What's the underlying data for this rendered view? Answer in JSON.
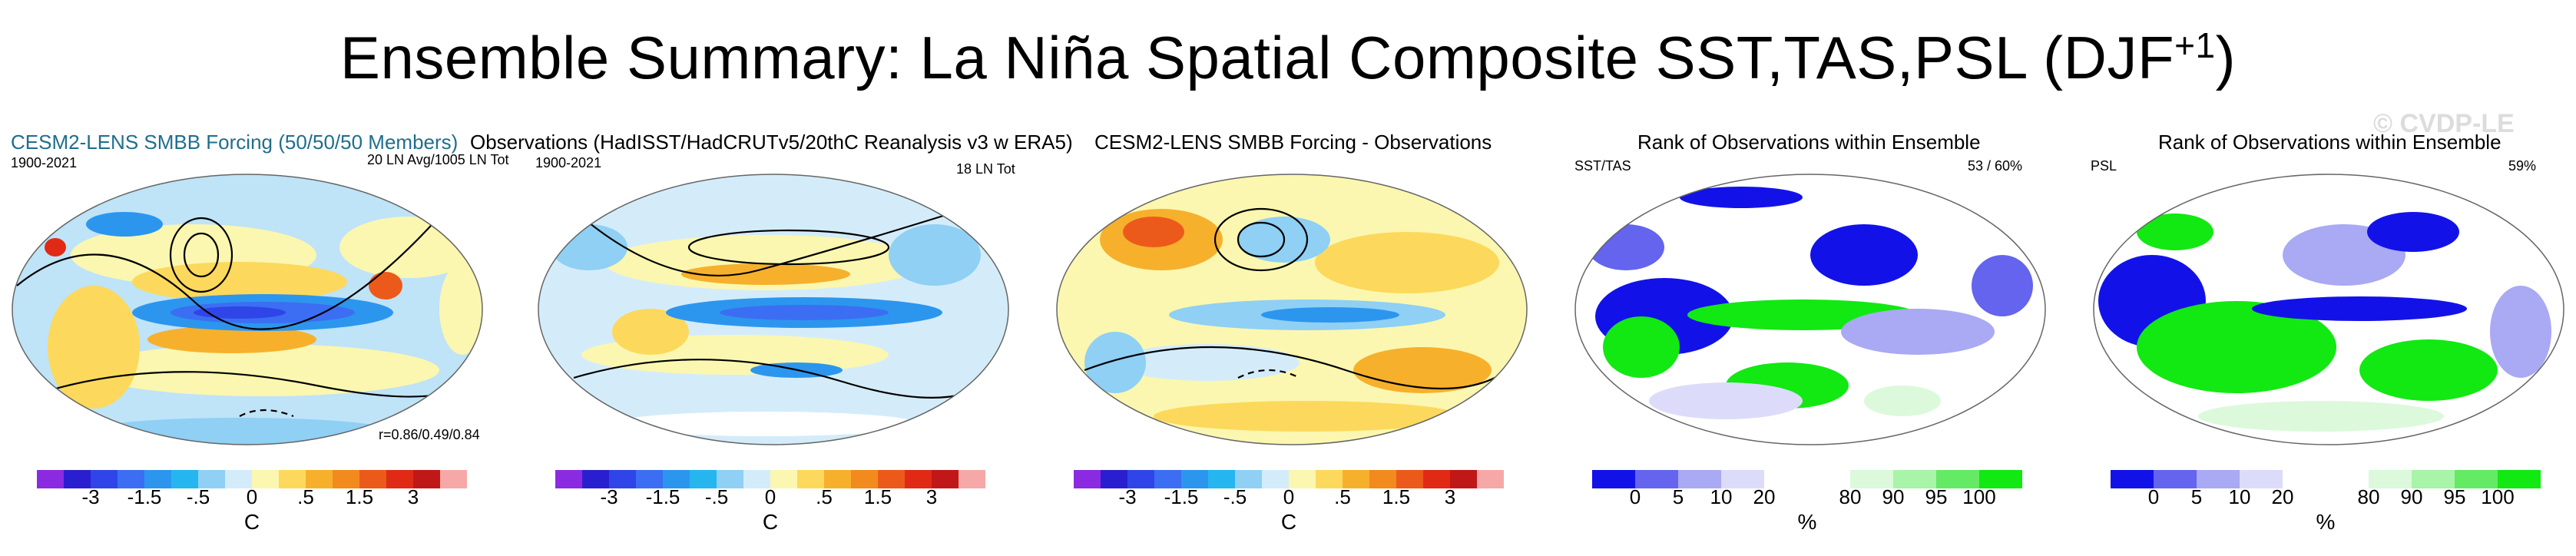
{
  "title": {
    "main": "Ensemble Summary: La Niña Spatial Composite SST,TAS,PSL (DJF",
    "sup": "+1",
    "close": ")"
  },
  "watermark": "© CVDP-LE",
  "panels": [
    {
      "title": "CESM2-LENS SMBB Forcing (50/50/50 Members)",
      "left": "1900-2021",
      "right": "20 LN Avg/1005 LN Tot",
      "corr": "r=0.86/0.49/0.84"
    },
    {
      "title": "Observations (HadISST/HadCRUTv5/20thC Reanalysis v3 w ERA5)",
      "left": "1900-2021",
      "right": "18 LN Tot"
    },
    {
      "title": "CESM2-LENS SMBB Forcing - Observations"
    },
    {
      "title": "Rank of Observations within Ensemble",
      "left": "SST/TAS",
      "right": "53 /  60%"
    },
    {
      "title": "Rank of Observations within Ensemble",
      "left": "PSL",
      "right": "59%"
    }
  ],
  "temp_colorbar": {
    "colors": [
      "#8a2be2",
      "#2a1fd0",
      "#2f45e8",
      "#3b6ef2",
      "#2c96ee",
      "#25b6f0",
      "#8fd0f4",
      "#d4ecfa",
      "#fbf7b0",
      "#fcd95c",
      "#f7b02c",
      "#f28a1e",
      "#ec5a1b",
      "#e02a16",
      "#c01818",
      "#f6a8a8"
    ],
    "ticks": [
      "-3",
      "-1.5",
      "-.5",
      "0",
      ".5",
      "1.5",
      "3"
    ],
    "unit": "C"
  },
  "rank_colorbar": {
    "colors": [
      "#1212e8",
      "#6464ee",
      "#a9a9f4",
      "#dcdcfa",
      "#ffffff",
      "#ffffff",
      "#dcf9dc",
      "#a8f4a8",
      "#64ea64",
      "#12e812"
    ],
    "ticks": [
      "0",
      "5",
      "10",
      "20",
      "80",
      "90",
      "95",
      "100"
    ],
    "unit": "%"
  }
}
